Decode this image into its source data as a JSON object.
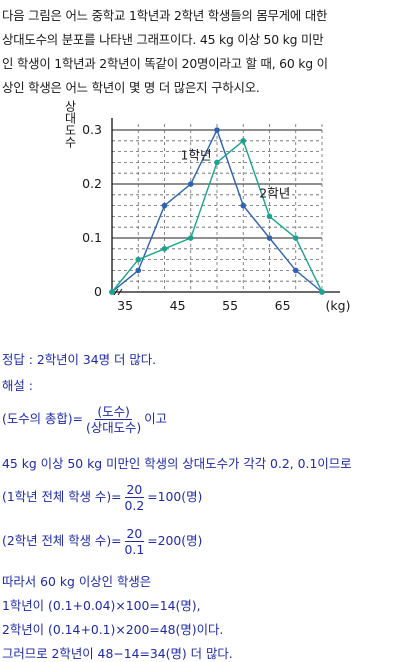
{
  "problem": {
    "lines": [
      "다음 그림은 어느 중학교 1학년과 2학년 학생들의 몸무게에 대한",
      "상대도수의 분포를 나타낸 그래프이다. 45 kg 이상 50 kg 미만",
      "인 학생이 1학년과 2학년이 똑같이 20명이라고 할 때, 60 kg 이",
      "상인 학생은 어느 학년이 몇 명 더 많은지 구하시오."
    ]
  },
  "chart_data": {
    "type": "line",
    "ylabel": "상대도수",
    "xunit": "(kg)",
    "yticks": [
      "0.3",
      "0.2",
      "0.1",
      "0"
    ],
    "xticks": [
      "35",
      "45",
      "55",
      "65"
    ],
    "xlim": [
      32.5,
      72.5
    ],
    "ylim": [
      0,
      0.3
    ],
    "colors": {
      "grade1": "#2f62b3",
      "grade2": "#1aa38e"
    },
    "series": [
      {
        "name": "1학년",
        "x": [
          32.5,
          37.5,
          42.5,
          47.5,
          52.5,
          57.5,
          62.5,
          67.5,
          72.5
        ],
        "values": [
          0,
          0.04,
          0.16,
          0.2,
          0.3,
          0.16,
          0.1,
          0.04,
          0
        ]
      },
      {
        "name": "2학년",
        "x": [
          32.5,
          37.5,
          42.5,
          47.5,
          52.5,
          57.5,
          62.5,
          67.5,
          72.5
        ],
        "values": [
          0,
          0.06,
          0.08,
          0.1,
          0.24,
          0.28,
          0.14,
          0.1,
          0
        ]
      }
    ]
  },
  "solution": {
    "answer": "정답 : 2학년이 34명 더 많다.",
    "explain_label": "해설 :",
    "formula_lhs": "(도수의 총합)=",
    "formula_num": "(도수)",
    "formula_den": "(상대도수)",
    "formula_tail": "이고",
    "line_rel": "45 kg 이상 50 kg 미만인 학생의 상대도수가 각각 0.2, 0.1이므로",
    "g1_lhs": "(1학년 전체 학생 수)=",
    "g1_num": "20",
    "g1_den": "0.2",
    "g1_rhs": "=100(명)",
    "g2_lhs": "(2학년 전체 학생 수)=",
    "g2_num": "20",
    "g2_den": "0.1",
    "g2_rhs": "=200(명)",
    "line_therefore": "따라서 60 kg 이상인 학생은",
    "line_g1": "1학년이 (0.1+0.04)×100=14(명),",
    "line_g2": "2학년이 (0.14+0.1)×200=48(명)이다.",
    "line_final": "그러므로 2학년이 48−14=34(명) 더 많다."
  }
}
